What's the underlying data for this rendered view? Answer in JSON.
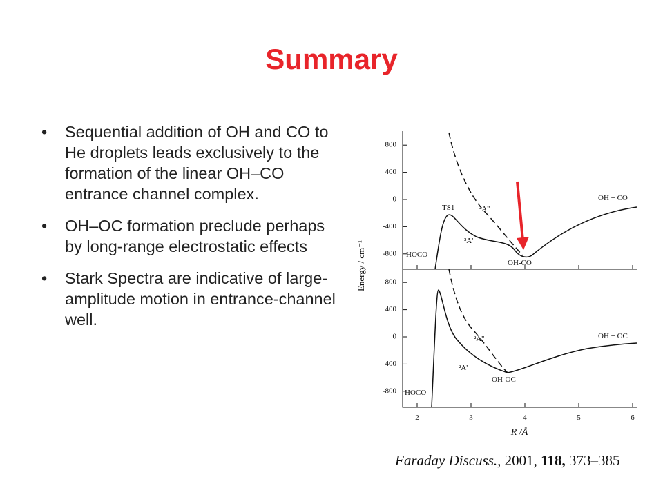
{
  "header": {
    "title": "Summary"
  },
  "bullets": [
    "Sequential addition of OH and CO to He droplets leads exclusively to the formation of the linear OH–CO entrance channel complex.",
    "OH–OC formation preclude perhaps by long-range electrostatic effects",
    "Stark Spectra are indicative of large-amplitude motion in entrance-channel well."
  ],
  "figure": {
    "y_axis_label": "Energy / cm⁻¹",
    "x_axis_label": "R /Å",
    "xticks": [
      2,
      3,
      4,
      5,
      6
    ],
    "top_panel": {
      "yticks": [
        800,
        400,
        0,
        -400,
        -800
      ],
      "labels": [
        "TS1",
        "²A''",
        "²A'",
        "HOCO",
        "OH-CO",
        "OH + CO"
      ]
    },
    "bottom_panel": {
      "yticks": [
        800,
        400,
        0,
        -400,
        -800
      ],
      "labels": [
        "²A''",
        "²A'",
        "HOCO",
        "OH-OC",
        "OH + OC"
      ]
    },
    "citation": {
      "journal": "Faraday Discuss.,",
      "year": "2001,",
      "volume": "118,",
      "pages": "373–385"
    }
  }
}
